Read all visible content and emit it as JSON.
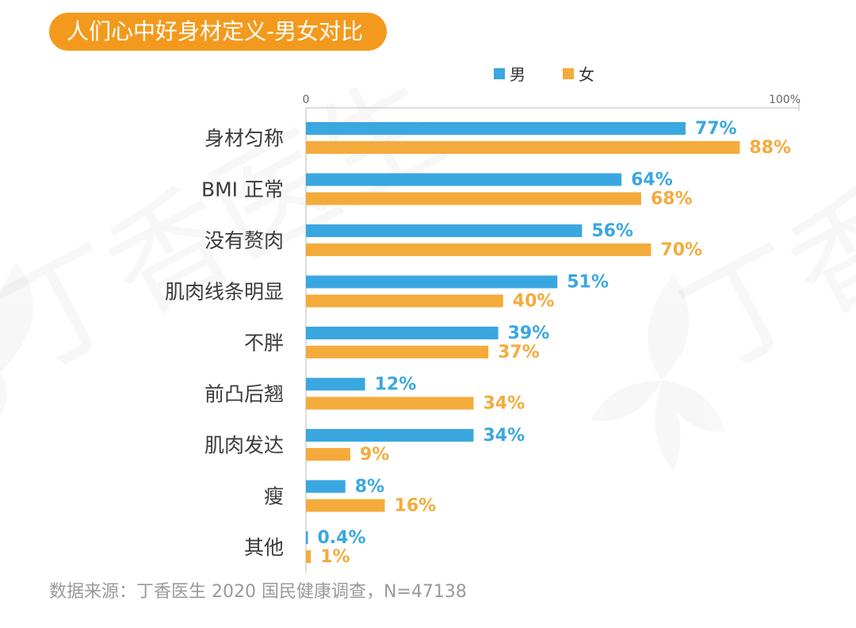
{
  "header": {
    "title": "人们心中好身材定义-男女对比"
  },
  "source": "数据来源：丁香医生 2020 国民健康调查，N=47138",
  "watermark": {
    "text": "丁香医生"
  },
  "colors": {
    "male": "#3aa7e0",
    "female": "#f4ab3c",
    "title_bg": "#f39a1e"
  },
  "chart_data": {
    "type": "bar",
    "orientation": "horizontal",
    "categories": [
      "身材匀称",
      "BMI 正常",
      "没有赘肉",
      "肌肉线条明显",
      "不胖",
      "前凸后翘",
      "肌肉发达",
      "瘦",
      "其他"
    ],
    "series": [
      {
        "name": "男",
        "values": [
          77,
          64,
          56,
          51,
          39,
          12,
          34,
          8,
          0.4
        ],
        "labels": [
          "77%",
          "64%",
          "56%",
          "51%",
          "39%",
          "12%",
          "34%",
          "8%",
          "0.4%"
        ]
      },
      {
        "name": "女",
        "values": [
          88,
          68,
          70,
          40,
          37,
          34,
          9,
          16,
          1
        ],
        "labels": [
          "88%",
          "68%",
          "70%",
          "40%",
          "37%",
          "34%",
          "9%",
          "16%",
          "1%"
        ]
      }
    ],
    "axis": {
      "min": 0,
      "max": 100,
      "tick_labels": [
        "0",
        "100%"
      ]
    },
    "legend": {
      "position": "top-center"
    },
    "grid": false
  }
}
